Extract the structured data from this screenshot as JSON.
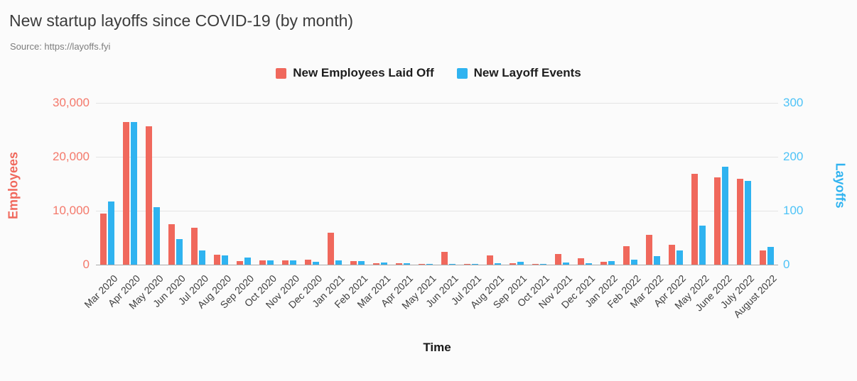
{
  "page": {
    "title": "New startup layoffs since COVID-19 (by month)",
    "source": "Source: https://layoffs.fyi"
  },
  "legend": {
    "items": [
      {
        "label": "New Employees Laid Off",
        "color": "#F0685C"
      },
      {
        "label": "New Layoff Events",
        "color": "#2FB3F0"
      }
    ]
  },
  "chart_data": {
    "type": "bar",
    "title": "New startup layoffs since COVID-19 (by month)",
    "source": "Source: https://layoffs.fyi",
    "xlabel": "Time",
    "grid": true,
    "legend_position": "top",
    "categories": [
      "Mar 2020",
      "Apr 2020",
      "May 2020",
      "Jun 2020",
      "Jul 2020",
      "Aug 2020",
      "Sep 2020",
      "Oct 2020",
      "Nov 2020",
      "Dec 2020",
      "Jan 2021",
      "Feb 2021",
      "Mar 2021",
      "Apr 2021",
      "May 2021",
      "Jun 2021",
      "Jul 2021",
      "Aug 2021",
      "Sep 2021",
      "Oct 2021",
      "Nov 2021",
      "Dec 2021",
      "Jan 2022",
      "Feb 2022",
      "Mar 2022",
      "Apr 2022",
      "May 2022",
      "June 2022",
      "July 2022",
      "August 2022"
    ],
    "series": [
      {
        "name": "New Employees Laid Off",
        "axis": "left",
        "color": "#F0685C",
        "values": [
          9500,
          26500,
          25700,
          7500,
          6800,
          1800,
          700,
          800,
          800,
          900,
          5900,
          700,
          300,
          300,
          100,
          2400,
          100,
          1700,
          300,
          200,
          2000,
          1200,
          500,
          3400,
          5500,
          3700,
          16800,
          16200,
          15900,
          2600
        ]
      },
      {
        "name": "New Layoff Events",
        "axis": "right",
        "color": "#2FB3F0",
        "values": [
          117,
          265,
          107,
          47,
          26,
          17,
          13,
          8,
          8,
          5,
          8,
          7,
          4,
          3,
          1,
          2,
          1,
          3,
          5,
          2,
          4,
          3,
          6,
          9,
          16,
          26,
          72,
          182,
          155,
          33
        ]
      }
    ],
    "left_axis": {
      "label": "Employees",
      "ticks": [
        "0",
        "10,000",
        "20,000",
        "30,000"
      ],
      "tick_values": [
        0,
        10000,
        20000,
        30000
      ],
      "max": 30000,
      "color": "#F4796B"
    },
    "right_axis": {
      "label": "Layoffs",
      "ticks": [
        "0",
        "100",
        "200",
        "300"
      ],
      "tick_values": [
        0,
        100,
        200,
        300
      ],
      "max": 300,
      "color": "#4EC3F7"
    }
  }
}
